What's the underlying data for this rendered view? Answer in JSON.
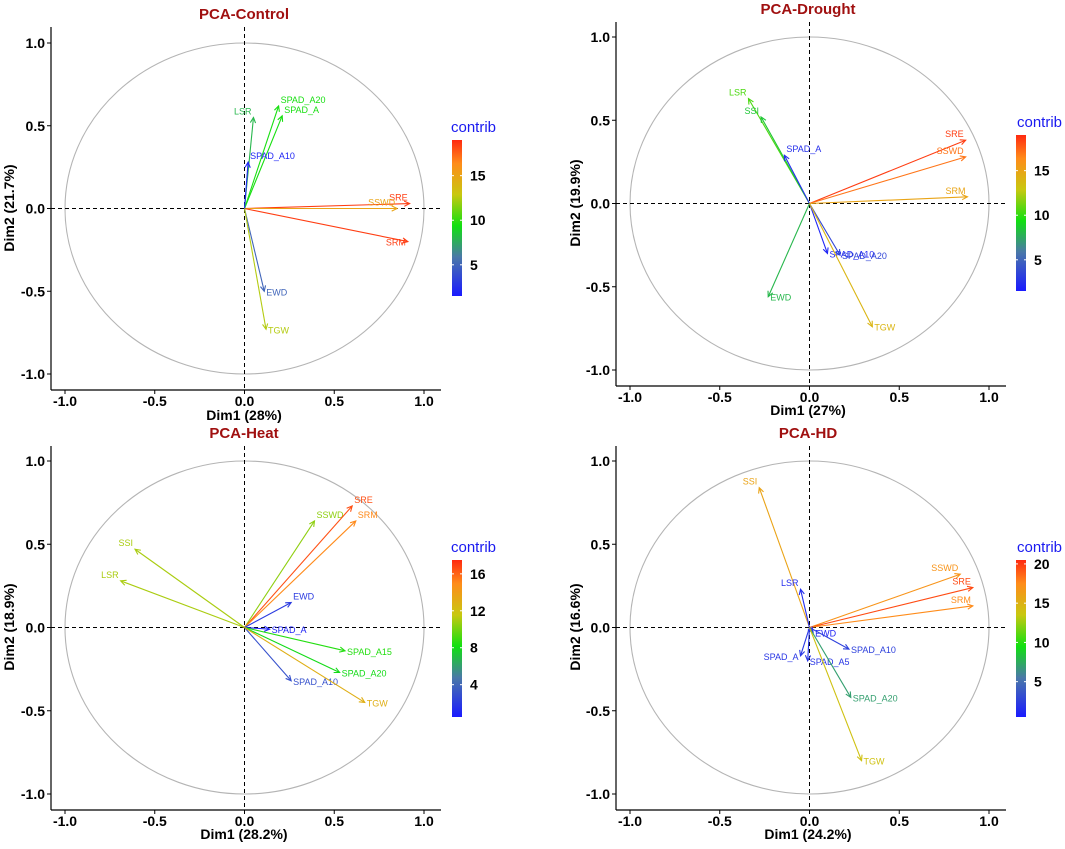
{
  "colors": {
    "title": "#a01010",
    "legend_title": "#1a1af0",
    "circle": "#b4b4b4",
    "axis": "#000000",
    "gradient": [
      "#1a1aff",
      "#4a78a8",
      "#10e010",
      "#c8c810",
      "#ff8c1a",
      "#ff2a10"
    ]
  },
  "chart_data": [
    {
      "type": "scatter",
      "subtype": "pca-variable-correlation-circle",
      "title": "PCA-Control",
      "xlabel": "Dim1 (28%)",
      "ylabel": "Dim2 (21.7%)",
      "xlim": [
        -1.1,
        1.1
      ],
      "ylim": [
        -1.1,
        1.1
      ],
      "xticks": [
        "-1.0",
        "-0.5",
        "0.0",
        "0.5",
        "1.0"
      ],
      "yticks": [
        "-1.0",
        "-0.5",
        "0.0",
        "0.5",
        "1.0"
      ],
      "legend_title": "contrib",
      "legend_range": [
        1.5,
        19.0
      ],
      "legend_ticks": [
        "5",
        "10",
        "15"
      ],
      "legend_tick_values": [
        5,
        10,
        15
      ],
      "variables": [
        {
          "name": "SRE",
          "x": 0.92,
          "y": 0.03,
          "contrib": 18.5,
          "label_side": "left"
        },
        {
          "name": "SSWD",
          "x": 0.85,
          "y": 0.0,
          "contrib": 15.0,
          "label_side": "left"
        },
        {
          "name": "SRM",
          "x": 0.91,
          "y": -0.2,
          "contrib": 18.5,
          "label_side": "left"
        },
        {
          "name": "SPAD_A20",
          "x": 0.19,
          "y": 0.62,
          "contrib": 9.5,
          "label_side": "right"
        },
        {
          "name": "LSR",
          "x": 0.05,
          "y": 0.55,
          "contrib": 8.0,
          "label_side": "left"
        },
        {
          "name": "SPAD_A",
          "x": 0.21,
          "y": 0.56,
          "contrib": 9.5,
          "label_side": "right"
        },
        {
          "name": "SPAD_A10",
          "x": 0.02,
          "y": 0.28,
          "contrib": 2.0,
          "label_side": "right"
        },
        {
          "name": "EWD",
          "x": 0.11,
          "y": -0.5,
          "contrib": 5.0,
          "label_side": "right"
        },
        {
          "name": "TGW",
          "x": 0.12,
          "y": -0.73,
          "contrib": 12.5,
          "label_side": "right"
        }
      ]
    },
    {
      "type": "scatter",
      "subtype": "pca-variable-correlation-circle",
      "title": "PCA-Drought",
      "xlabel": "Dim1 (27%)",
      "ylabel": "Dim2 (19.9%)",
      "xlim": [
        -1.1,
        1.1
      ],
      "ylim": [
        -1.1,
        1.1
      ],
      "xticks": [
        "-1.0",
        "-0.5",
        "0.0",
        "0.5",
        "1.0"
      ],
      "yticks": [
        "-1.0",
        "-0.5",
        "0.0",
        "0.5",
        "1.0"
      ],
      "legend_title": "contrib",
      "legend_range": [
        1.5,
        19.0
      ],
      "legend_ticks": [
        "5",
        "10",
        "15"
      ],
      "legend_tick_values": [
        5,
        10,
        15
      ],
      "variables": [
        {
          "name": "LSR",
          "x": -0.34,
          "y": 0.63,
          "contrib": 10.5,
          "label_side": "left"
        },
        {
          "name": "SSI",
          "x": -0.27,
          "y": 0.52,
          "contrib": 8.5,
          "label_side": "left"
        },
        {
          "name": "SPAD_A",
          "x": -0.14,
          "y": 0.29,
          "contrib": 2.5,
          "label_side": "right"
        },
        {
          "name": "SRE",
          "x": 0.87,
          "y": 0.38,
          "contrib": 18.5,
          "label_side": "left"
        },
        {
          "name": "SSWD",
          "x": 0.87,
          "y": 0.28,
          "contrib": 17.0,
          "label_side": "left"
        },
        {
          "name": "SRM",
          "x": 0.88,
          "y": 0.04,
          "contrib": 15.0,
          "label_side": "left"
        },
        {
          "name": "SPAD_A10",
          "x": 0.1,
          "y": -0.3,
          "contrib": 2.0,
          "label_side": "right"
        },
        {
          "name": "SPAD_A20",
          "x": 0.17,
          "y": -0.31,
          "contrib": 3.5,
          "label_side": "right"
        },
        {
          "name": "EWD",
          "x": -0.23,
          "y": -0.56,
          "contrib": 8.0,
          "label_side": "right"
        },
        {
          "name": "TGW",
          "x": 0.35,
          "y": -0.74,
          "contrib": 14.0,
          "label_side": "right"
        }
      ]
    },
    {
      "type": "scatter",
      "subtype": "pca-variable-correlation-circle",
      "title": "PCA-Heat",
      "xlabel": "Dim1 (28.2%)",
      "ylabel": "Dim2 (18.9%)",
      "xlim": [
        -1.1,
        1.1
      ],
      "ylim": [
        -1.1,
        1.1
      ],
      "xticks": [
        "-1.0",
        "-0.5",
        "0.0",
        "0.5",
        "1.0"
      ],
      "yticks": [
        "-1.0",
        "-0.5",
        "0.0",
        "0.5",
        "1.0"
      ],
      "legend_title": "contrib",
      "legend_range": [
        0.5,
        17.5
      ],
      "legend_ticks": [
        "4",
        "8",
        "12",
        "16"
      ],
      "legend_tick_values": [
        4,
        8,
        12,
        16
      ],
      "variables": [
        {
          "name": "SSI",
          "x": -0.61,
          "y": 0.47,
          "contrib": 11.0,
          "label_side": "left"
        },
        {
          "name": "LSR",
          "x": -0.69,
          "y": 0.28,
          "contrib": 11.0,
          "label_side": "left"
        },
        {
          "name": "SSWD",
          "x": 0.39,
          "y": 0.64,
          "contrib": 10.5,
          "label_side": "right"
        },
        {
          "name": "SRE",
          "x": 0.6,
          "y": 0.73,
          "contrib": 16.5,
          "label_side": "right"
        },
        {
          "name": "SRM",
          "x": 0.62,
          "y": 0.64,
          "contrib": 15.0,
          "label_side": "right"
        },
        {
          "name": "EWD",
          "x": 0.26,
          "y": 0.15,
          "contrib": 2.0,
          "label_side": "right"
        },
        {
          "name": "SPAD_A",
          "x": 0.14,
          "y": -0.01,
          "contrib": 1.0,
          "label_side": "right"
        },
        {
          "name": "SPAD_A15",
          "x": 0.56,
          "y": -0.14,
          "contrib": 8.5,
          "label_side": "right"
        },
        {
          "name": "SPAD_A20",
          "x": 0.53,
          "y": -0.27,
          "contrib": 8.0,
          "label_side": "right"
        },
        {
          "name": "SPAD_A10",
          "x": 0.26,
          "y": -0.32,
          "contrib": 3.0,
          "label_side": "right"
        },
        {
          "name": "TGW",
          "x": 0.67,
          "y": -0.45,
          "contrib": 13.0,
          "label_side": "right"
        }
      ]
    },
    {
      "type": "scatter",
      "subtype": "pca-variable-correlation-circle",
      "title": "PCA-HD",
      "xlabel": "Dim1 (24.2%)",
      "ylabel": "Dim2 (16.6%)",
      "xlim": [
        -1.1,
        1.1
      ],
      "ylim": [
        -1.1,
        1.1
      ],
      "xticks": [
        "-1.0",
        "-0.5",
        "0.0",
        "0.5",
        "1.0"
      ],
      "yticks": [
        "-1.0",
        "-0.5",
        "0.0",
        "0.5",
        "1.0"
      ],
      "legend_title": "contrib",
      "legend_range": [
        0.5,
        20.5
      ],
      "legend_ticks": [
        "5",
        "10",
        "15",
        "20"
      ],
      "legend_tick_values": [
        5,
        10,
        15,
        20
      ],
      "variables": [
        {
          "name": "SSI",
          "x": -0.28,
          "y": 0.84,
          "contrib": 16.0,
          "label_side": "left"
        },
        {
          "name": "SSWD",
          "x": 0.84,
          "y": 0.32,
          "contrib": 17.0,
          "label_side": "left"
        },
        {
          "name": "SRE",
          "x": 0.91,
          "y": 0.24,
          "contrib": 19.5,
          "label_side": "left"
        },
        {
          "name": "SRM",
          "x": 0.91,
          "y": 0.13,
          "contrib": 17.5,
          "label_side": "left"
        },
        {
          "name": "LSR",
          "x": -0.05,
          "y": 0.23,
          "contrib": 1.5,
          "label_side": "left"
        },
        {
          "name": "EWD",
          "x": 0.02,
          "y": -0.03,
          "contrib": 1.0,
          "label_side": "right"
        },
        {
          "name": "SPAD_A10",
          "x": 0.22,
          "y": -0.13,
          "contrib": 2.5,
          "label_side": "right"
        },
        {
          "name": "SPAD_A",
          "x": -0.05,
          "y": -0.17,
          "contrib": 2.0,
          "label_side": "left"
        },
        {
          "name": "SPAD_A5",
          "x": -0.01,
          "y": -0.2,
          "contrib": 2.0,
          "label_side": "right"
        },
        {
          "name": "SPAD_A20",
          "x": 0.23,
          "y": -0.42,
          "contrib": 7.0,
          "label_side": "right"
        },
        {
          "name": "TGW",
          "x": 0.29,
          "y": -0.8,
          "contrib": 14.0,
          "label_side": "right"
        }
      ]
    }
  ]
}
